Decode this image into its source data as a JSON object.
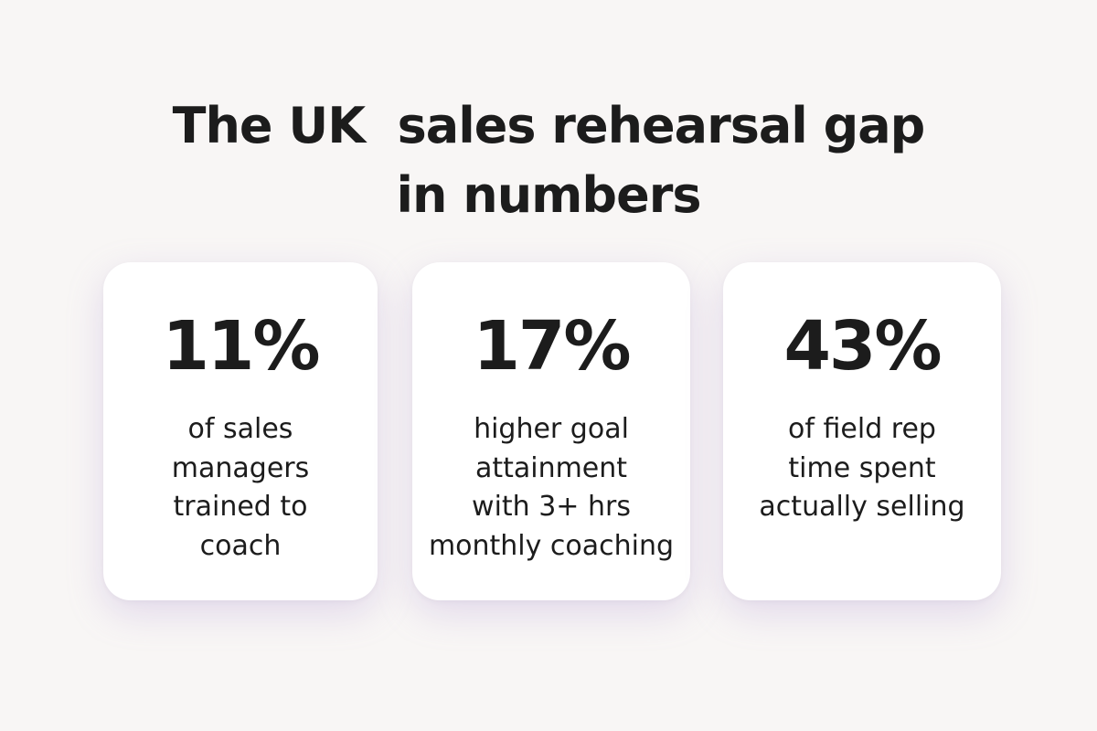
{
  "title_lines": [
    "The UK  sales rehearsal gap",
    "in numbers"
  ],
  "cards": [
    {
      "stat": "11%",
      "description_lines": [
        "of sales",
        "managers",
        "trained to",
        "coach"
      ]
    },
    {
      "stat": "17%",
      "description_lines": [
        "higher goal",
        "attainment",
        "with 3+ hrs",
        "monthly coaching"
      ]
    },
    {
      "stat": "43%",
      "description_lines": [
        "of field rep",
        "time spent",
        "actually selling"
      ]
    }
  ]
}
